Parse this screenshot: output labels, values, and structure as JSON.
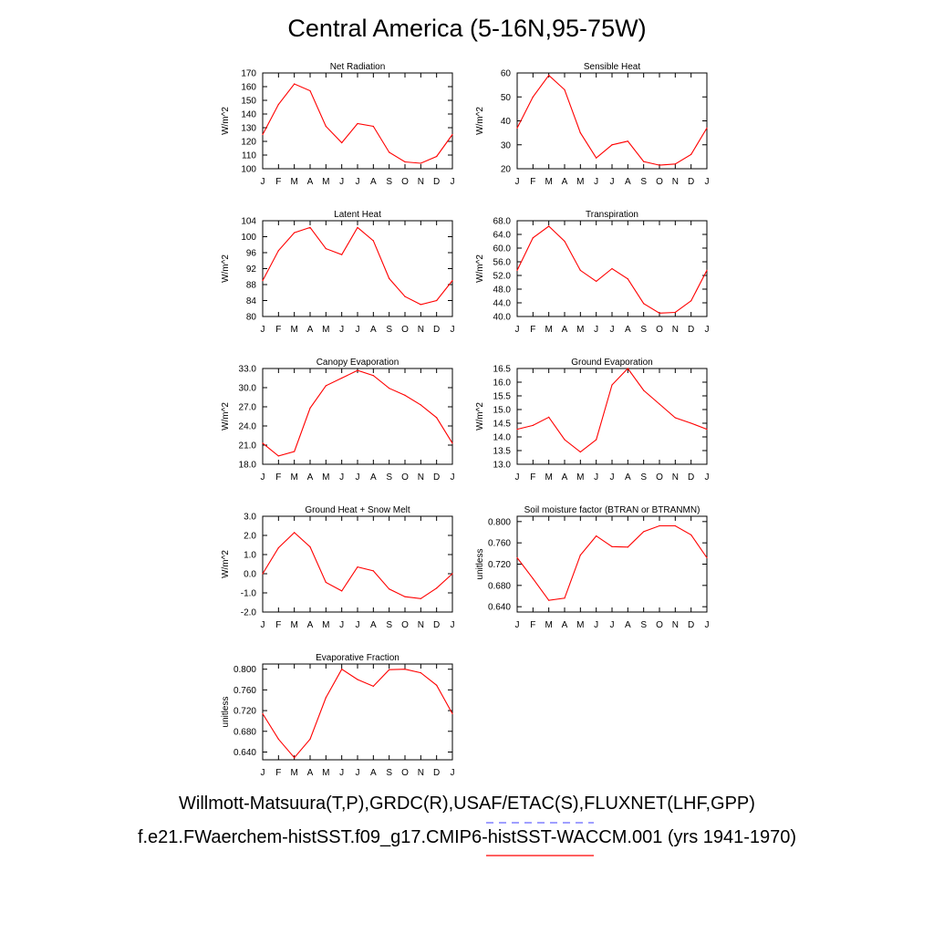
{
  "page": {
    "title": "Central America (5-16N,95-75W)"
  },
  "legend": {
    "line1": "Willmott-Matsuura(T,P),GRDC(R),USAF/ETAC(S),FLUXNET(LHF,GPP)",
    "line2": "f.e21.FWaerchem-histSST.f09_g17.CMIP6-histSST-WACCM.001 (yrs 1941-1970)",
    "obs_color": "#6666ff",
    "model_color": "#ff0000"
  },
  "chart_data": [
    {
      "type": "line",
      "title": "Net Radiation",
      "ylabel": "W/m^2",
      "categories": [
        "J",
        "F",
        "M",
        "A",
        "M",
        "J",
        "J",
        "A",
        "S",
        "O",
        "N",
        "D",
        "J"
      ],
      "ylim": [
        100,
        170
      ],
      "yticks": [
        "100",
        "110",
        "120",
        "130",
        "140",
        "150",
        "160",
        "170"
      ],
      "series": [
        {
          "color": "#ff0000",
          "values": [
            125,
            147,
            162,
            157,
            131,
            119,
            133,
            131,
            112,
            105,
            104,
            109,
            125
          ]
        }
      ]
    },
    {
      "type": "line",
      "title": "Sensible Heat",
      "ylabel": "W/m^2",
      "categories": [
        "J",
        "F",
        "M",
        "A",
        "M",
        "J",
        "J",
        "A",
        "S",
        "O",
        "N",
        "D",
        "J"
      ],
      "ylim": [
        20,
        60
      ],
      "yticks": [
        "20",
        "30",
        "40",
        "50",
        "60"
      ],
      "series": [
        {
          "color": "#ff0000",
          "values": [
            37,
            50,
            59,
            53,
            35,
            24.5,
            30,
            31.5,
            23,
            21.5,
            22,
            26,
            37
          ]
        }
      ]
    },
    {
      "type": "line",
      "title": "Latent Heat",
      "ylabel": "W/m^2",
      "categories": [
        "J",
        "F",
        "M",
        "A",
        "M",
        "J",
        "J",
        "A",
        "S",
        "O",
        "N",
        "D",
        "J"
      ],
      "ylim": [
        80,
        104
      ],
      "yticks": [
        "80",
        "84",
        "88",
        "92",
        "96",
        "100",
        "104"
      ],
      "series": [
        {
          "color": "#ff0000",
          "values": [
            89,
            96.5,
            101,
            102.3,
            97,
            95.5,
            102.3,
            99,
            89.5,
            85,
            83,
            84,
            89
          ]
        }
      ]
    },
    {
      "type": "line",
      "title": "Transpiration",
      "ylabel": "W/m^2",
      "categories": [
        "J",
        "F",
        "M",
        "A",
        "M",
        "J",
        "J",
        "A",
        "S",
        "O",
        "N",
        "D",
        "J"
      ],
      "ylim": [
        40,
        68
      ],
      "yticks": [
        "40.0",
        "44.0",
        "48.0",
        "52.0",
        "56.0",
        "60.0",
        "64.0",
        "68.0"
      ],
      "series": [
        {
          "color": "#ff0000",
          "values": [
            53.5,
            63,
            66.4,
            62,
            53.5,
            50.3,
            54,
            51,
            43.8,
            41,
            41.2,
            44.6,
            53.5
          ]
        }
      ]
    },
    {
      "type": "line",
      "title": "Canopy Evaporation",
      "ylabel": "W/m^2",
      "categories": [
        "J",
        "F",
        "M",
        "A",
        "M",
        "J",
        "J",
        "A",
        "S",
        "O",
        "N",
        "D",
        "J"
      ],
      "ylim": [
        18,
        33
      ],
      "yticks": [
        "18.0",
        "21.0",
        "24.0",
        "27.0",
        "30.0",
        "33.0"
      ],
      "series": [
        {
          "color": "#ff0000",
          "values": [
            21.3,
            19.3,
            20,
            26.8,
            30.3,
            31.5,
            32.7,
            31.9,
            29.9,
            28.8,
            27.3,
            25.3,
            21.3
          ]
        }
      ]
    },
    {
      "type": "line",
      "title": "Ground Evaporation",
      "ylabel": "W/m^2",
      "categories": [
        "J",
        "F",
        "M",
        "A",
        "M",
        "J",
        "J",
        "A",
        "S",
        "O",
        "N",
        "D",
        "J"
      ],
      "ylim": [
        13,
        16.5
      ],
      "yticks": [
        "13.0",
        "13.5",
        "14.0",
        "14.5",
        "15.0",
        "15.5",
        "16.0",
        "16.5"
      ],
      "series": [
        {
          "color": "#ff0000",
          "values": [
            14.28,
            14.42,
            14.72,
            13.9,
            13.45,
            13.9,
            15.9,
            16.5,
            15.7,
            15.2,
            14.7,
            14.5,
            14.28
          ]
        }
      ]
    },
    {
      "type": "line",
      "title": "Ground Heat + Snow Melt",
      "ylabel": "W/m^2",
      "categories": [
        "J",
        "F",
        "M",
        "A",
        "M",
        "J",
        "J",
        "A",
        "S",
        "O",
        "N",
        "D",
        "J"
      ],
      "ylim": [
        -2,
        3
      ],
      "yticks": [
        "-2.0",
        "-1.0",
        "0.0",
        "1.0",
        "2.0",
        "3.0"
      ],
      "series": [
        {
          "color": "#ff0000",
          "values": [
            0,
            1.35,
            2.15,
            1.4,
            -0.45,
            -0.9,
            0.35,
            0.15,
            -0.8,
            -1.2,
            -1.3,
            -0.75,
            0
          ]
        }
      ]
    },
    {
      "type": "line",
      "title": "Soil moisture factor (BTRAN or BTRANMN)",
      "ylabel": "unitless",
      "categories": [
        "J",
        "F",
        "M",
        "A",
        "M",
        "J",
        "J",
        "A",
        "S",
        "O",
        "N",
        "D",
        "J"
      ],
      "ylim": [
        0.63,
        0.81
      ],
      "yticks": [
        "0.640",
        "0.680",
        "0.720",
        "0.760",
        "0.800"
      ],
      "series": [
        {
          "color": "#ff0000",
          "values": [
            0.732,
            0.693,
            0.652,
            0.656,
            0.737,
            0.773,
            0.753,
            0.752,
            0.781,
            0.792,
            0.792,
            0.775,
            0.732
          ]
        }
      ]
    },
    {
      "type": "line",
      "title": "Evaporative Fraction",
      "ylabel": "unitless",
      "categories": [
        "J",
        "F",
        "M",
        "A",
        "M",
        "J",
        "J",
        "A",
        "S",
        "O",
        "N",
        "D",
        "J"
      ],
      "ylim": [
        0.625,
        0.81
      ],
      "yticks": [
        "0.640",
        "0.680",
        "0.720",
        "0.760",
        "0.800"
      ],
      "series": [
        {
          "color": "#ff0000",
          "values": [
            0.714,
            0.665,
            0.629,
            0.665,
            0.745,
            0.8,
            0.78,
            0.767,
            0.799,
            0.8,
            0.793,
            0.769,
            0.714
          ]
        }
      ]
    }
  ]
}
